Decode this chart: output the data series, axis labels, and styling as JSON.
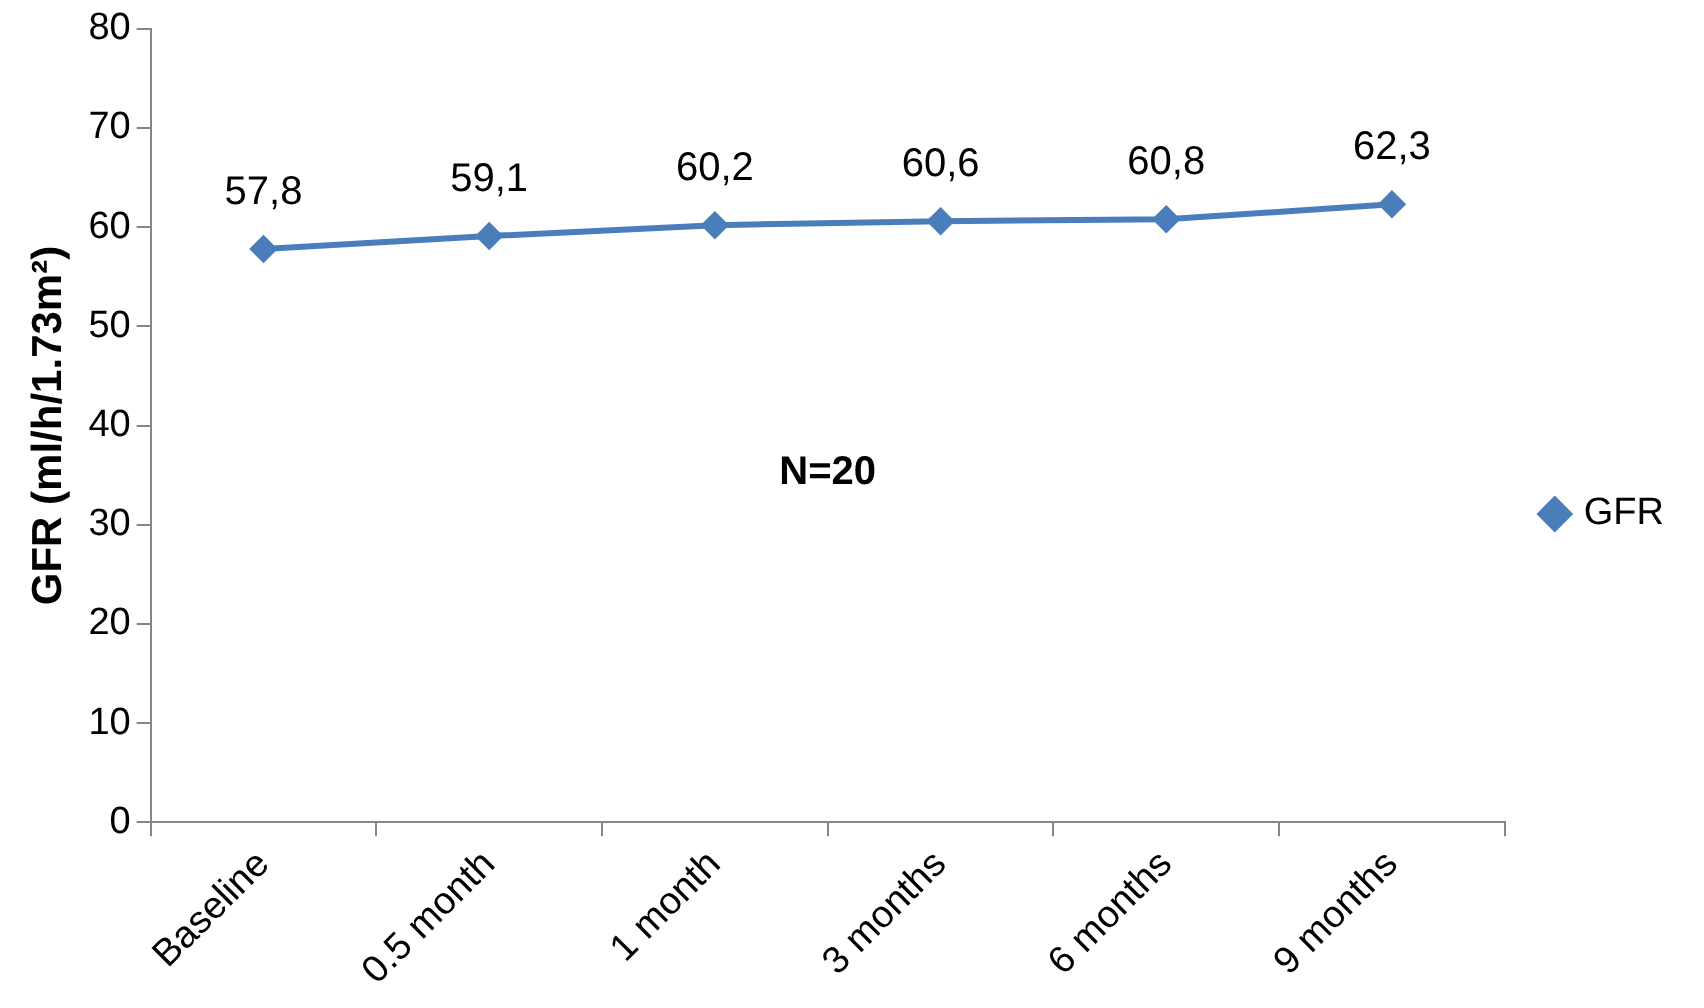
{
  "chart_data": {
    "type": "line",
    "ylabel": "GFR (ml/h/1.73m²)",
    "categories": [
      "Baseline",
      "0.5 month",
      "1 month",
      "3 months",
      "6 months",
      "9 months"
    ],
    "series": [
      {
        "name": "GFR",
        "color": "#4a7ebb",
        "values": [
          57.8,
          59.1,
          60.2,
          60.6,
          60.8,
          62.3
        ],
        "value_labels": [
          "57,8",
          "59,1",
          "60,2",
          "60,6",
          "60,8",
          "62,3"
        ]
      }
    ],
    "ylim": [
      0,
      80
    ],
    "yticks": [
      0,
      10,
      20,
      30,
      40,
      50,
      60,
      70,
      80
    ],
    "grid": false,
    "legend": "right",
    "marker": "diamond",
    "line_style": "solid",
    "annotations": [
      "N=20"
    ]
  }
}
